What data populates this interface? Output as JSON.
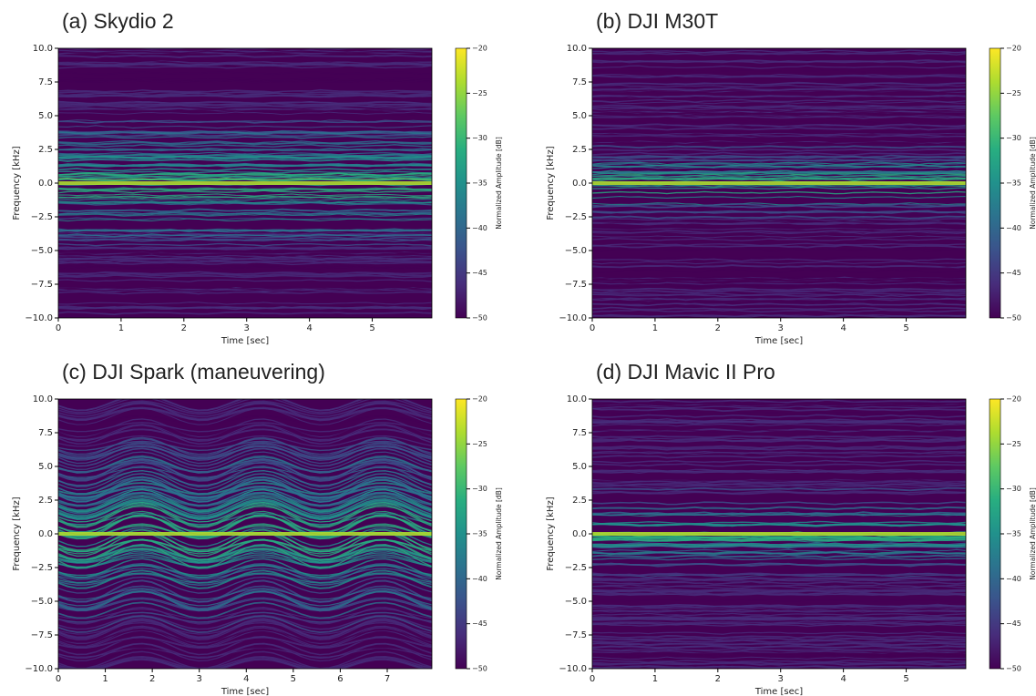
{
  "chart_data": [
    {
      "type": "spectrogram",
      "title": "(a) Skydio 2",
      "xlabel": "Time [sec]",
      "ylabel": "Frequency [kHz]",
      "xlim": [
        0,
        5.95
      ],
      "xticks": [
        0,
        1,
        2,
        3,
        4,
        5
      ],
      "ylim": [
        -10,
        10
      ],
      "yticks": [
        {
          "value": -10,
          "label": "−10.0"
        },
        {
          "value": -7.5,
          "label": "−7.5"
        },
        {
          "value": -5,
          "label": "−5.0"
        },
        {
          "value": -2.5,
          "label": "−2.5"
        },
        {
          "value": 0,
          "label": "0.0"
        },
        {
          "value": 2.5,
          "label": "2.5"
        },
        {
          "value": 5,
          "label": "5.0"
        },
        {
          "value": 7.5,
          "label": "7.5"
        },
        {
          "value": 10,
          "label": "10.0"
        }
      ],
      "colormap": "viridis",
      "colorbar": {
        "label": "Normalized Amplitude [dB]",
        "lim": [
          -50,
          -20
        ],
        "ticks": [
          {
            "value": -50,
            "label": "−50"
          },
          {
            "value": -45,
            "label": "−45"
          },
          {
            "value": -40,
            "label": "−40"
          },
          {
            "value": -35,
            "label": "−35"
          },
          {
            "value": -30,
            "label": "−30"
          },
          {
            "value": -25,
            "label": "−25"
          },
          {
            "value": -20,
            "label": "−20"
          }
        ]
      }
    },
    {
      "type": "spectrogram",
      "title": "(b) DJI M30T",
      "xlabel": "Time [sec]",
      "ylabel": "Frequency [kHz]",
      "xlim": [
        0,
        5.95
      ],
      "xticks": [
        0,
        1,
        2,
        3,
        4,
        5
      ],
      "ylim": [
        -10,
        10
      ],
      "yticks": [
        {
          "value": -10,
          "label": "−10.0"
        },
        {
          "value": -7.5,
          "label": "−7.5"
        },
        {
          "value": -5,
          "label": "−5.0"
        },
        {
          "value": -2.5,
          "label": "−2.5"
        },
        {
          "value": 0,
          "label": "0.0"
        },
        {
          "value": 2.5,
          "label": "2.5"
        },
        {
          "value": 5,
          "label": "5.0"
        },
        {
          "value": 7.5,
          "label": "7.5"
        },
        {
          "value": 10,
          "label": "10.0"
        }
      ],
      "colormap": "viridis",
      "colorbar": {
        "label": "Normalized Amplitude [dB]",
        "lim": [
          -50,
          -20
        ],
        "ticks": [
          {
            "value": -50,
            "label": "−50"
          },
          {
            "value": -45,
            "label": "−45"
          },
          {
            "value": -40,
            "label": "−40"
          },
          {
            "value": -35,
            "label": "−35"
          },
          {
            "value": -30,
            "label": "−30"
          },
          {
            "value": -25,
            "label": "−25"
          },
          {
            "value": -20,
            "label": "−20"
          }
        ]
      }
    },
    {
      "type": "spectrogram",
      "title": "(c) DJI Spark (maneuvering)",
      "xlabel": "Time [sec]",
      "ylabel": "Frequency [kHz]",
      "xlim": [
        0,
        7.95
      ],
      "xticks": [
        0,
        1,
        2,
        3,
        4,
        5,
        6,
        7
      ],
      "ylim": [
        -10,
        10
      ],
      "yticks": [
        {
          "value": -10,
          "label": "−10.0"
        },
        {
          "value": -7.5,
          "label": "−7.5"
        },
        {
          "value": -5,
          "label": "−5.0"
        },
        {
          "value": -2.5,
          "label": "−2.5"
        },
        {
          "value": 0,
          "label": "0.0"
        },
        {
          "value": 2.5,
          "label": "2.5"
        },
        {
          "value": 5,
          "label": "5.0"
        },
        {
          "value": 7.5,
          "label": "7.5"
        },
        {
          "value": 10,
          "label": "10.0"
        }
      ],
      "colormap": "viridis",
      "colorbar": {
        "label": "Normalized Amplitude [dB]",
        "lim": [
          -50,
          -20
        ],
        "ticks": [
          {
            "value": -50,
            "label": "−50"
          },
          {
            "value": -45,
            "label": "−45"
          },
          {
            "value": -40,
            "label": "−40"
          },
          {
            "value": -35,
            "label": "−35"
          },
          {
            "value": -30,
            "label": "−30"
          },
          {
            "value": -25,
            "label": "−25"
          },
          {
            "value": -20,
            "label": "−20"
          }
        ]
      }
    },
    {
      "type": "spectrogram",
      "title": "(d) DJI Mavic II Pro",
      "xlabel": "Time [sec]",
      "ylabel": "Frequency [kHz]",
      "xlim": [
        0,
        5.95
      ],
      "xticks": [
        0,
        1,
        2,
        3,
        4,
        5
      ],
      "ylim": [
        -10,
        10
      ],
      "yticks": [
        {
          "value": -10,
          "label": "−10.0"
        },
        {
          "value": -7.5,
          "label": "−7.5"
        },
        {
          "value": -5,
          "label": "−5.0"
        },
        {
          "value": -2.5,
          "label": "−2.5"
        },
        {
          "value": 0,
          "label": "0.0"
        },
        {
          "value": 2.5,
          "label": "2.5"
        },
        {
          "value": 5,
          "label": "5.0"
        },
        {
          "value": 7.5,
          "label": "7.5"
        },
        {
          "value": 10,
          "label": "10.0"
        }
      ],
      "colormap": "viridis",
      "colorbar": {
        "label": "Normalized Amplitude [dB]",
        "lim": [
          -50,
          -20
        ],
        "ticks": [
          {
            "value": -50,
            "label": "−50"
          },
          {
            "value": -45,
            "label": "−45"
          },
          {
            "value": -40,
            "label": "−40"
          },
          {
            "value": -35,
            "label": "−35"
          },
          {
            "value": -30,
            "label": "−30"
          },
          {
            "value": -25,
            "label": "−25"
          },
          {
            "value": -20,
            "label": "−20"
          }
        ]
      }
    }
  ]
}
